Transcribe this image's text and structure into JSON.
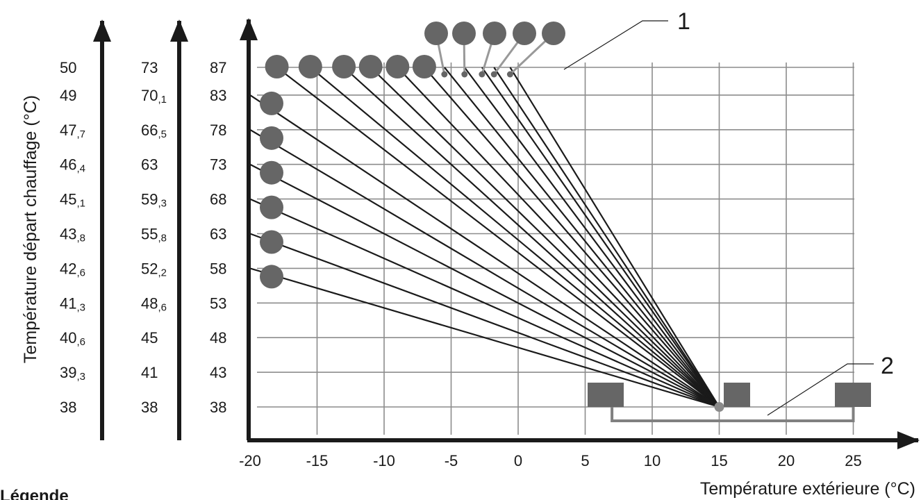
{
  "chart_data": {
    "type": "line",
    "xlabel": "Température extérieure (°C)",
    "ylabel": "Température départ chauffage (°C)",
    "x_ticks": [
      "-20",
      "-15",
      "-10",
      "-5",
      "0",
      "5",
      "10",
      "15",
      "20",
      "25"
    ],
    "xlim": [
      -20,
      27
    ],
    "scale_columns": [
      {
        "labels": [
          [
            "50",
            ""
          ],
          [
            "49",
            ""
          ],
          [
            "47",
            ",7"
          ],
          [
            "46",
            ",4"
          ],
          [
            "45",
            ",1"
          ],
          [
            "43",
            ",8"
          ],
          [
            "42",
            ",6"
          ],
          [
            "41",
            ",3"
          ],
          [
            "40",
            ",6"
          ],
          [
            "39",
            ",3"
          ],
          [
            "38",
            ""
          ]
        ]
      },
      {
        "labels": [
          [
            "73",
            ""
          ],
          [
            "70",
            ",1"
          ],
          [
            "66",
            ",5"
          ],
          [
            "63",
            ""
          ],
          [
            "59",
            ",3"
          ],
          [
            "55",
            ",8"
          ],
          [
            "52",
            ",2"
          ],
          [
            "48",
            ",6"
          ],
          [
            "45",
            ""
          ],
          [
            "41",
            ""
          ],
          [
            "38",
            ""
          ]
        ]
      },
      {
        "labels": [
          [
            "87",
            ""
          ],
          [
            "83",
            ""
          ],
          [
            "78",
            ""
          ],
          [
            "73",
            ""
          ],
          [
            "68",
            ""
          ],
          [
            "63",
            ""
          ],
          [
            "58",
            ""
          ],
          [
            "53",
            ""
          ],
          [
            "48",
            ""
          ],
          [
            "43",
            ""
          ],
          [
            "38",
            ""
          ]
        ]
      }
    ],
    "pivot": {
      "x": 15,
      "y": 38
    },
    "curves_left_endpoints": [
      {
        "x": -18,
        "y": 87
      },
      {
        "x": -15.5,
        "y": 87
      },
      {
        "x": -13,
        "y": 87
      },
      {
        "x": -11,
        "y": 87
      },
      {
        "x": -9,
        "y": 87
      },
      {
        "x": -7,
        "y": 87
      },
      {
        "x": -5.5,
        "y": 87
      },
      {
        "x": -4,
        "y": 87
      },
      {
        "x": -2.7,
        "y": 87
      },
      {
        "x": -1.8,
        "y": 87
      },
      {
        "x": -0.6,
        "y": 87
      },
      {
        "x": -20,
        "y": 83
      },
      {
        "x": -20,
        "y": 78
      },
      {
        "x": -20,
        "y": 73
      },
      {
        "x": -20,
        "y": 68
      },
      {
        "x": -20,
        "y": 63
      },
      {
        "x": -20,
        "y": 58
      }
    ],
    "adjustable_range_x": [
      7,
      25
    ],
    "callouts": [
      "1",
      "2"
    ],
    "colors": {
      "line": "#1a1a1a",
      "grid": "#8c8c8c",
      "marker": "#666666",
      "leader": "#999999"
    }
  },
  "legend": {
    "title": "Légende"
  }
}
